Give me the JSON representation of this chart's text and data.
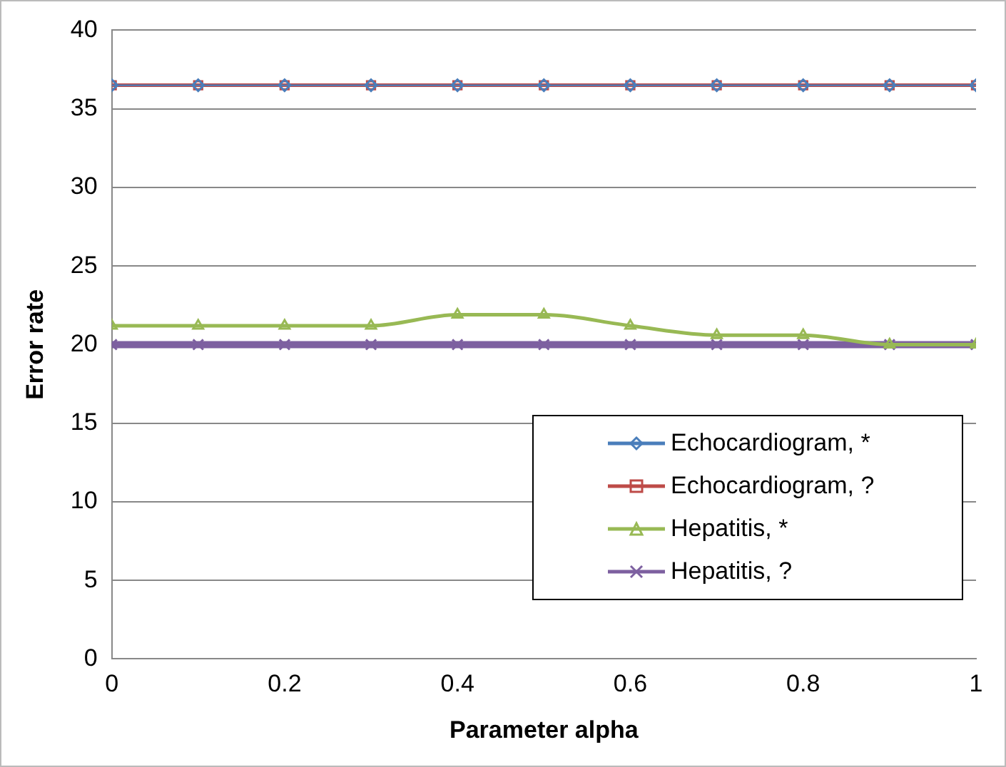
{
  "chart_data": {
    "type": "line",
    "xlabel": "Parameter alpha",
    "ylabel": "Error rate",
    "x": [
      0,
      0.1,
      0.2,
      0.3,
      0.4,
      0.5,
      0.6,
      0.7,
      0.8,
      0.9,
      1
    ],
    "xlim": [
      0,
      1
    ],
    "xticks": [
      0,
      0.2,
      0.4,
      0.6,
      0.8,
      1
    ],
    "ylim": [
      0,
      40
    ],
    "yticks": [
      0,
      5,
      10,
      15,
      20,
      25,
      30,
      35,
      40
    ],
    "grid": "y",
    "legend": "right",
    "series": [
      {
        "name": "Echocardiogram, *",
        "color": "#4a7ebb",
        "marker": "diamond",
        "values": [
          36.5,
          36.5,
          36.5,
          36.5,
          36.5,
          36.5,
          36.5,
          36.5,
          36.5,
          36.5,
          36.5
        ]
      },
      {
        "name": "Echocardiogram, ?",
        "color": "#be4b48",
        "marker": "square",
        "values": [
          36.5,
          36.5,
          36.5,
          36.5,
          36.5,
          36.5,
          36.5,
          36.5,
          36.5,
          36.5,
          36.5
        ]
      },
      {
        "name": "Hepatitis, *",
        "color": "#98b954",
        "marker": "triangle",
        "values": [
          21.2,
          21.2,
          21.2,
          21.2,
          21.9,
          21.9,
          21.2,
          20.6,
          20.6,
          20,
          20
        ]
      },
      {
        "name": "Hepatitis, ?",
        "color": "#7d60a0",
        "marker": "cross",
        "values": [
          20,
          20,
          20,
          20,
          20,
          20,
          20,
          20,
          20,
          20,
          20
        ]
      }
    ]
  }
}
